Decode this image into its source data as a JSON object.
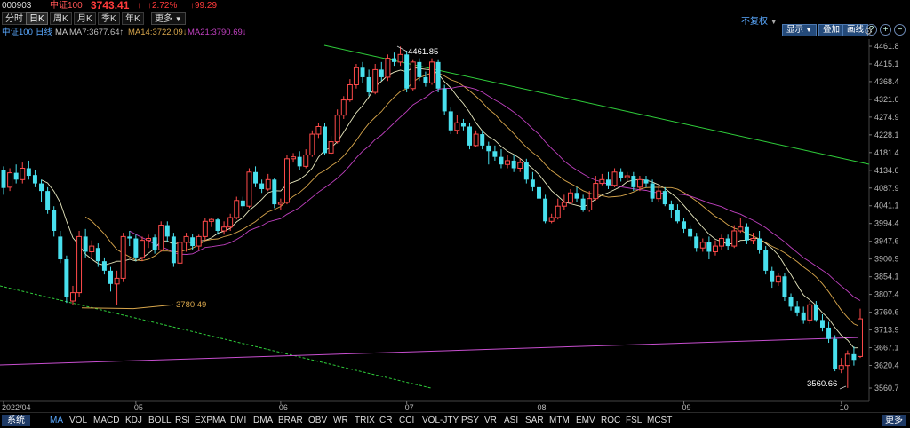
{
  "header": {
    "code": "000903",
    "name": "中证100",
    "price": "3743.41",
    "arrow": "↑",
    "pct": "↑2.72%",
    "chg": "↑99.29"
  },
  "tabs": [
    {
      "label": "分时",
      "active": false
    },
    {
      "label": "日K",
      "active": true
    },
    {
      "label": "周K",
      "active": false
    },
    {
      "label": "月K",
      "active": false
    },
    {
      "label": "季K",
      "active": false
    },
    {
      "label": "年K",
      "active": false
    },
    {
      "label": "更多",
      "active": false
    }
  ],
  "right_controls": {
    "fq": "不复权",
    "show": "显示",
    "overlay": "叠加",
    "draw": "画线",
    "gear": "⚙"
  },
  "legend": {
    "index": "中证100",
    "period": "日线",
    "ma": "MA",
    "ma7": "MA7:3677.64↑",
    "ma14": "MA14:3722.09↓",
    "ma21": "MA21:3790.69↓"
  },
  "colors": {
    "up": "#ff4a4a",
    "down": "#48e0ee",
    "ma7": "#e9e9c0",
    "ma14": "#d8a64c",
    "ma21": "#c040c0",
    "trend_green": "#2fcf3b",
    "support": "#c84fd0",
    "header_red": "#ff3b3b",
    "legend_blue": "#5aa9ff"
  },
  "chart_data": {
    "type": "candlestick",
    "y_ticks": [
      "4461.8",
      "4415.1",
      "4368.4",
      "4321.6",
      "4274.9",
      "4228.1",
      "4181.4",
      "4134.6",
      "4087.9",
      "4041.1",
      "3994.4",
      "3947.6",
      "3900.9",
      "3854.1",
      "3807.4",
      "3760.6",
      "3713.9",
      "3667.1",
      "3620.4",
      "3560.7"
    ],
    "ylim": [
      3560.7,
      4461.8
    ],
    "x_ticks": [
      "2022/04",
      "05",
      "06",
      "07",
      "08",
      "09",
      "10"
    ],
    "annotations": [
      {
        "label": "4461.85",
        "value": 4461.85
      },
      {
        "label": "3780.49",
        "value": 3780.49
      },
      {
        "label": "3560.66",
        "value": 3560.66
      }
    ],
    "candles": [
      {
        "o": 4135,
        "c": 4088,
        "h": 4145,
        "l": 4070
      },
      {
        "o": 4090,
        "c": 4128,
        "h": 4140,
        "l": 4080
      },
      {
        "o": 4128,
        "c": 4110,
        "h": 4150,
        "l": 4100
      },
      {
        "o": 4110,
        "c": 4140,
        "h": 4155,
        "l": 4100
      },
      {
        "o": 4140,
        "c": 4120,
        "h": 4160,
        "l": 4110
      },
      {
        "o": 4122,
        "c": 4100,
        "h": 4135,
        "l": 4090
      },
      {
        "o": 4100,
        "c": 4080,
        "h": 4110,
        "l": 4050
      },
      {
        "o": 4080,
        "c": 4030,
        "h": 4090,
        "l": 4020
      },
      {
        "o": 4030,
        "c": 3975,
        "h": 4040,
        "l": 3960
      },
      {
        "o": 3960,
        "c": 3900,
        "h": 3975,
        "l": 3890
      },
      {
        "o": 3900,
        "c": 3800,
        "h": 3910,
        "l": 3785
      },
      {
        "o": 3790,
        "c": 3812,
        "h": 3830,
        "l": 3780
      },
      {
        "o": 3812,
        "c": 3960,
        "h": 3975,
        "l": 3800
      },
      {
        "o": 3960,
        "c": 3920,
        "h": 3980,
        "l": 3905
      },
      {
        "o": 3920,
        "c": 3935,
        "h": 3950,
        "l": 3900
      },
      {
        "o": 3930,
        "c": 3895,
        "h": 3942,
        "l": 3880
      },
      {
        "o": 3895,
        "c": 3870,
        "h": 3905,
        "l": 3860
      },
      {
        "o": 3870,
        "c": 3835,
        "h": 3880,
        "l": 3815
      },
      {
        "o": 3835,
        "c": 3850,
        "h": 3870,
        "l": 3780
      },
      {
        "o": 3850,
        "c": 3960,
        "h": 3970,
        "l": 3840
      },
      {
        "o": 3960,
        "c": 3955,
        "h": 3975,
        "l": 3935
      },
      {
        "o": 3955,
        "c": 3905,
        "h": 3965,
        "l": 3895
      },
      {
        "o": 3905,
        "c": 3950,
        "h": 3960,
        "l": 3895
      },
      {
        "o": 3950,
        "c": 3955,
        "h": 3965,
        "l": 3930
      },
      {
        "o": 3958,
        "c": 3925,
        "h": 3965,
        "l": 3915
      },
      {
        "o": 3925,
        "c": 3990,
        "h": 4000,
        "l": 3920
      },
      {
        "o": 3990,
        "c": 3960,
        "h": 4000,
        "l": 3945
      },
      {
        "o": 3960,
        "c": 3890,
        "h": 3970,
        "l": 3880
      },
      {
        "o": 3890,
        "c": 3945,
        "h": 3955,
        "l": 3875
      },
      {
        "o": 3945,
        "c": 3960,
        "h": 3970,
        "l": 3920
      },
      {
        "o": 3958,
        "c": 3935,
        "h": 3968,
        "l": 3925
      },
      {
        "o": 3935,
        "c": 3960,
        "h": 3965,
        "l": 3925
      },
      {
        "o": 3960,
        "c": 4000,
        "h": 4010,
        "l": 3950
      },
      {
        "o": 4000,
        "c": 4005,
        "h": 4010,
        "l": 3985
      },
      {
        "o": 4005,
        "c": 3975,
        "h": 4010,
        "l": 3965
      },
      {
        "o": 3975,
        "c": 3985,
        "h": 4000,
        "l": 3965
      },
      {
        "o": 3985,
        "c": 4010,
        "h": 4020,
        "l": 3975
      },
      {
        "o": 4010,
        "c": 4055,
        "h": 4065,
        "l": 4005
      },
      {
        "o": 4055,
        "c": 4040,
        "h": 4065,
        "l": 4030
      },
      {
        "o": 4040,
        "c": 4130,
        "h": 4140,
        "l": 4035
      },
      {
        "o": 4130,
        "c": 4100,
        "h": 4145,
        "l": 4090
      },
      {
        "o": 4100,
        "c": 4085,
        "h": 4110,
        "l": 4075
      },
      {
        "o": 4085,
        "c": 4110,
        "h": 4125,
        "l": 4080
      },
      {
        "o": 4110,
        "c": 4045,
        "h": 4115,
        "l": 4035
      },
      {
        "o": 4045,
        "c": 4050,
        "h": 4060,
        "l": 4030
      },
      {
        "o": 4050,
        "c": 4165,
        "h": 4175,
        "l": 4045
      },
      {
        "o": 4165,
        "c": 4170,
        "h": 4180,
        "l": 4155
      },
      {
        "o": 4170,
        "c": 4145,
        "h": 4185,
        "l": 4135
      },
      {
        "o": 4145,
        "c": 4175,
        "h": 4190,
        "l": 4140
      },
      {
        "o": 4175,
        "c": 4230,
        "h": 4240,
        "l": 4170
      },
      {
        "o": 4230,
        "c": 4250,
        "h": 4260,
        "l": 4220
      },
      {
        "o": 4250,
        "c": 4180,
        "h": 4260,
        "l": 4175
      },
      {
        "o": 4180,
        "c": 4210,
        "h": 4225,
        "l": 4175
      },
      {
        "o": 4210,
        "c": 4280,
        "h": 4295,
        "l": 4205
      },
      {
        "o": 4280,
        "c": 4320,
        "h": 4330,
        "l": 4270
      },
      {
        "o": 4320,
        "c": 4360,
        "h": 4375,
        "l": 4315
      },
      {
        "o": 4360,
        "c": 4405,
        "h": 4415,
        "l": 4350
      },
      {
        "o": 4405,
        "c": 4380,
        "h": 4420,
        "l": 4365
      },
      {
        "o": 4380,
        "c": 4340,
        "h": 4400,
        "l": 4330
      },
      {
        "o": 4340,
        "c": 4400,
        "h": 4415,
        "l": 4335
      },
      {
        "o": 4400,
        "c": 4380,
        "h": 4420,
        "l": 4370
      },
      {
        "o": 4380,
        "c": 4430,
        "h": 4440,
        "l": 4370
      },
      {
        "o": 4430,
        "c": 4420,
        "h": 4445,
        "l": 4410
      },
      {
        "o": 4420,
        "c": 4440,
        "h": 4461,
        "l": 4410
      },
      {
        "o": 4440,
        "c": 4350,
        "h": 4450,
        "l": 4340
      },
      {
        "o": 4350,
        "c": 4420,
        "h": 4425,
        "l": 4345
      },
      {
        "o": 4420,
        "c": 4380,
        "h": 4430,
        "l": 4370
      },
      {
        "o": 4380,
        "c": 4365,
        "h": 4395,
        "l": 4355
      },
      {
        "o": 4365,
        "c": 4420,
        "h": 4430,
        "l": 4360
      },
      {
        "o": 4420,
        "c": 4350,
        "h": 4425,
        "l": 4340
      },
      {
        "o": 4350,
        "c": 4290,
        "h": 4360,
        "l": 4280
      },
      {
        "o": 4290,
        "c": 4240,
        "h": 4300,
        "l": 4230
      },
      {
        "o": 4240,
        "c": 4260,
        "h": 4280,
        "l": 4230
      },
      {
        "o": 4260,
        "c": 4250,
        "h": 4270,
        "l": 4240
      },
      {
        "o": 4250,
        "c": 4200,
        "h": 4260,
        "l": 4190
      },
      {
        "o": 4200,
        "c": 4230,
        "h": 4240,
        "l": 4195
      },
      {
        "o": 4230,
        "c": 4200,
        "h": 4240,
        "l": 4190
      },
      {
        "o": 4200,
        "c": 4185,
        "h": 4210,
        "l": 4150
      },
      {
        "o": 4185,
        "c": 4170,
        "h": 4200,
        "l": 4160
      },
      {
        "o": 4170,
        "c": 4150,
        "h": 4190,
        "l": 4140
      },
      {
        "o": 4150,
        "c": 4160,
        "h": 4175,
        "l": 4140
      },
      {
        "o": 4160,
        "c": 4140,
        "h": 4175,
        "l": 4130
      },
      {
        "o": 4140,
        "c": 4155,
        "h": 4165,
        "l": 4130
      },
      {
        "o": 4155,
        "c": 4110,
        "h": 4165,
        "l": 4100
      },
      {
        "o": 4110,
        "c": 4090,
        "h": 4130,
        "l": 4080
      },
      {
        "o": 4090,
        "c": 4060,
        "h": 4110,
        "l": 4050
      },
      {
        "o": 4060,
        "c": 4000,
        "h": 4070,
        "l": 3995
      },
      {
        "o": 4000,
        "c": 4010,
        "h": 4020,
        "l": 3995
      },
      {
        "o": 4010,
        "c": 4040,
        "h": 4060,
        "l": 4005
      },
      {
        "o": 4040,
        "c": 4050,
        "h": 4070,
        "l": 4030
      },
      {
        "o": 4050,
        "c": 4075,
        "h": 4085,
        "l": 4045
      },
      {
        "o": 4075,
        "c": 4060,
        "h": 4090,
        "l": 4050
      },
      {
        "o": 4060,
        "c": 4030,
        "h": 4070,
        "l": 4025
      },
      {
        "o": 4030,
        "c": 4060,
        "h": 4080,
        "l": 4025
      },
      {
        "o": 4060,
        "c": 4100,
        "h": 4120,
        "l": 4055
      },
      {
        "o": 4100,
        "c": 4110,
        "h": 4125,
        "l": 4095
      },
      {
        "o": 4110,
        "c": 4095,
        "h": 4130,
        "l": 4085
      },
      {
        "o": 4095,
        "c": 4130,
        "h": 4140,
        "l": 4090
      },
      {
        "o": 4130,
        "c": 4115,
        "h": 4140,
        "l": 4105
      },
      {
        "o": 4115,
        "c": 4120,
        "h": 4130,
        "l": 4105
      },
      {
        "o": 4120,
        "c": 4090,
        "h": 4130,
        "l": 4080
      },
      {
        "o": 4090,
        "c": 4110,
        "h": 4120,
        "l": 4080
      },
      {
        "o": 4110,
        "c": 4100,
        "h": 4120,
        "l": 4090
      },
      {
        "o": 4100,
        "c": 4060,
        "h": 4110,
        "l": 4050
      },
      {
        "o": 4060,
        "c": 4080,
        "h": 4095,
        "l": 4050
      },
      {
        "o": 4080,
        "c": 4045,
        "h": 4090,
        "l": 4040
      },
      {
        "o": 4045,
        "c": 4030,
        "h": 4055,
        "l": 4010
      },
      {
        "o": 4030,
        "c": 4000,
        "h": 4045,
        "l": 3995
      },
      {
        "o": 4000,
        "c": 3980,
        "h": 4010,
        "l": 3970
      },
      {
        "o": 3980,
        "c": 3960,
        "h": 3990,
        "l": 3950
      },
      {
        "o": 3960,
        "c": 3930,
        "h": 3970,
        "l": 3920
      },
      {
        "o": 3930,
        "c": 3945,
        "h": 3955,
        "l": 3920
      },
      {
        "o": 3945,
        "c": 3920,
        "h": 3960,
        "l": 3900
      },
      {
        "o": 3920,
        "c": 3935,
        "h": 3950,
        "l": 3910
      },
      {
        "o": 3935,
        "c": 3955,
        "h": 3965,
        "l": 3925
      },
      {
        "o": 3955,
        "c": 3935,
        "h": 3965,
        "l": 3925
      },
      {
        "o": 3935,
        "c": 3975,
        "h": 3990,
        "l": 3930
      },
      {
        "o": 3975,
        "c": 3985,
        "h": 4010,
        "l": 3970
      },
      {
        "o": 3985,
        "c": 3950,
        "h": 3995,
        "l": 3940
      },
      {
        "o": 3950,
        "c": 3955,
        "h": 3970,
        "l": 3940
      },
      {
        "o": 3955,
        "c": 3925,
        "h": 3975,
        "l": 3915
      },
      {
        "o": 3925,
        "c": 3870,
        "h": 3935,
        "l": 3860
      },
      {
        "o": 3870,
        "c": 3840,
        "h": 3880,
        "l": 3825
      },
      {
        "o": 3840,
        "c": 3855,
        "h": 3865,
        "l": 3830
      },
      {
        "o": 3855,
        "c": 3800,
        "h": 3865,
        "l": 3790
      },
      {
        "o": 3800,
        "c": 3775,
        "h": 3810,
        "l": 3765
      },
      {
        "o": 3775,
        "c": 3760,
        "h": 3790,
        "l": 3750
      },
      {
        "o": 3760,
        "c": 3740,
        "h": 3775,
        "l": 3730
      },
      {
        "o": 3740,
        "c": 3780,
        "h": 3790,
        "l": 3730
      },
      {
        "o": 3780,
        "c": 3740,
        "h": 3790,
        "l": 3735
      },
      {
        "o": 3740,
        "c": 3720,
        "h": 3755,
        "l": 3710
      },
      {
        "o": 3720,
        "c": 3690,
        "h": 3735,
        "l": 3680
      },
      {
        "o": 3690,
        "c": 3610,
        "h": 3700,
        "l": 3605
      },
      {
        "o": 3610,
        "c": 3620,
        "h": 3640,
        "l": 3600
      },
      {
        "o": 3620,
        "c": 3650,
        "h": 3660,
        "l": 3561
      },
      {
        "o": 3650,
        "c": 3635,
        "h": 3670,
        "l": 3620
      },
      {
        "o": 3644,
        "c": 3743,
        "h": 3770,
        "l": 3640
      }
    ]
  },
  "bottom_bar": {
    "left": "系统",
    "indicators": [
      "MA",
      "VOL",
      "MACD",
      "KDJ",
      "BOLL",
      "RSI",
      "EXPMA",
      "DMI",
      "DMA",
      "BRAR",
      "OBV",
      "WR",
      "TRIX",
      "CR",
      "CCI",
      "VOL-JTY",
      "PSY",
      "VR",
      "ASI",
      "SAR",
      "MTM",
      "EMV",
      "ROC",
      "FSL",
      "MCST"
    ],
    "active": "MA",
    "right": "更多"
  }
}
